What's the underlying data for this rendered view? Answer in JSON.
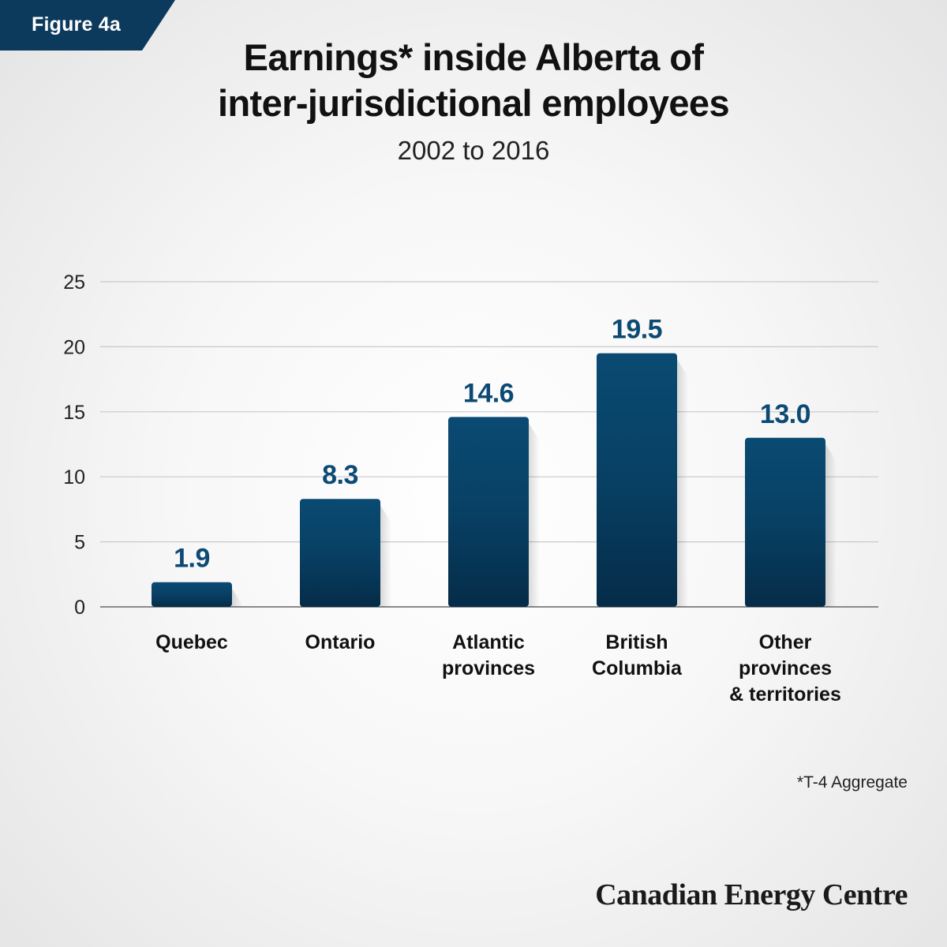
{
  "badge": {
    "label": "Figure 4a"
  },
  "header": {
    "title_line1": "Earnings* inside Alberta of",
    "title_line2": "inter-jurisdictional employees",
    "subtitle": "2002 to 2016"
  },
  "footnote": "*T-4 Aggregate",
  "brand": "Canadian Energy Centre",
  "colors": {
    "bar_top": "#0a4a72",
    "bar_bottom": "#062d49",
    "label": "#0c4a74",
    "grid": "#c9c9c9",
    "axis": "#8a8a8a"
  },
  "chart_data": {
    "type": "bar",
    "title": "Earnings* inside Alberta of inter-jurisdictional employees",
    "subtitle": "2002 to 2016",
    "categories": [
      [
        "Quebec"
      ],
      [
        "Ontario"
      ],
      [
        "Atlantic",
        "provinces"
      ],
      [
        "British",
        "Columbia"
      ],
      [
        "Other",
        "provinces",
        "& territories"
      ]
    ],
    "values": [
      1.9,
      8.3,
      14.6,
      19.5,
      13.0
    ],
    "value_labels": [
      "1.9",
      "8.3",
      "14.6",
      "19.5",
      "13.0"
    ],
    "yticks": [
      "0",
      "5",
      "10",
      "15",
      "20",
      "25"
    ],
    "ylim": [
      0,
      25
    ],
    "xlabel": "",
    "ylabel": "",
    "grid": true,
    "legend": "none"
  }
}
